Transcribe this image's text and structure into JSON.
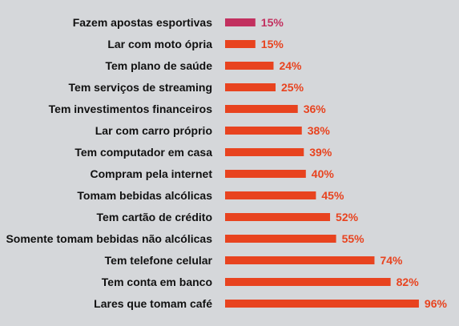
{
  "chart_data": {
    "type": "bar",
    "orientation": "horizontal",
    "categories": [
      "Fazem apostas esportivas",
      "Lar com moto  ópria",
      "Tem plano de saúde",
      "Tem serviços de streaming",
      "Tem investimentos financeiros",
      "Lar com carro próprio",
      "Tem computador em casa",
      "Compram pela internet",
      "Tomam bebidas alcólicas",
      "Tem cartão de crédito",
      "Somente tomam bebidas não alcólicas",
      "Tem telefone celular",
      "Tem conta em banco",
      "Lares que tomam café"
    ],
    "values": [
      15,
      15,
      24,
      25,
      36,
      38,
      39,
      40,
      45,
      52,
      55,
      74,
      82,
      96
    ],
    "value_labels": [
      "15%",
      "15%",
      "24%",
      "25%",
      "36%",
      "38%",
      "39%",
      "40%",
      "45%",
      "52%",
      "55%",
      "74%",
      "82%",
      "96%"
    ],
    "highlight_index": 0,
    "colors": {
      "bar": "#e8431f",
      "highlight_bar": "#c2305f",
      "label": "#e8431f",
      "highlight_label": "#c2305f",
      "category_text": "#111111",
      "background": "#d5d7da"
    },
    "xlim": [
      0,
      100
    ],
    "grid": false,
    "legend": "none"
  }
}
